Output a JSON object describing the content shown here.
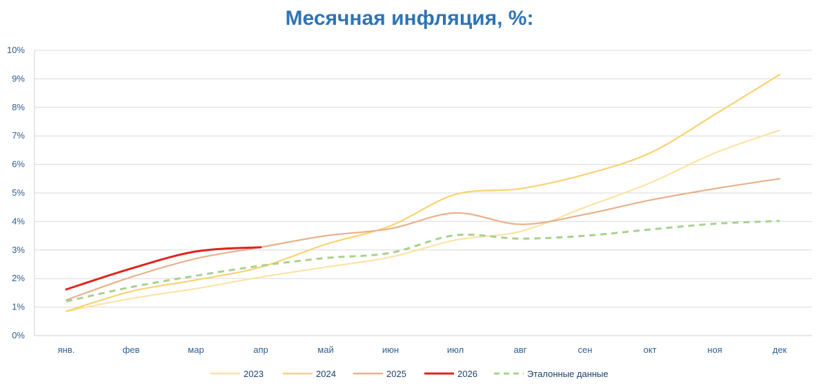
{
  "chart_data": {
    "type": "line",
    "title": "Месячная инфляция, %:",
    "xlabel": "",
    "ylabel": "",
    "categories": [
      "янв.",
      "фев",
      "мар",
      "апр",
      "май",
      "июн",
      "июл",
      "авг",
      "сен",
      "окт",
      "ноя",
      "дек"
    ],
    "y_ticks": [
      "0%",
      "1%",
      "2%",
      "3%",
      "4%",
      "5%",
      "6%",
      "7%",
      "8%",
      "9%",
      "10%"
    ],
    "ylim": [
      0,
      10
    ],
    "grid": true,
    "legend_position": "bottom",
    "series": [
      {
        "name": "2023",
        "color": "#fbe3a4",
        "dashed": false,
        "values": [
          0.85,
          1.3,
          1.65,
          2.05,
          2.4,
          2.75,
          3.35,
          3.65,
          4.5,
          5.35,
          6.4,
          7.2
        ]
      },
      {
        "name": "2024",
        "color": "#f9d26e",
        "dashed": false,
        "values": [
          0.85,
          1.55,
          1.95,
          2.4,
          3.2,
          3.85,
          4.95,
          5.15,
          5.65,
          6.4,
          7.75,
          9.15
        ]
      },
      {
        "name": "2025",
        "color": "#e8b08a",
        "dashed": false,
        "values": [
          1.25,
          2.05,
          2.7,
          3.1,
          3.5,
          3.75,
          4.3,
          3.9,
          4.25,
          4.75,
          5.15,
          5.5
        ]
      },
      {
        "name": "2026",
        "color": "#e0221c",
        "dashed": false,
        "values": [
          1.62,
          2.35,
          2.95,
          3.1,
          null,
          null,
          null,
          null,
          null,
          null,
          null,
          null
        ]
      },
      {
        "name": "Эталонные данные",
        "color": "#a9d18e",
        "dashed": true,
        "values": [
          1.2,
          1.7,
          2.1,
          2.45,
          2.72,
          2.9,
          3.52,
          3.4,
          3.5,
          3.72,
          3.92,
          4.02
        ]
      }
    ]
  }
}
